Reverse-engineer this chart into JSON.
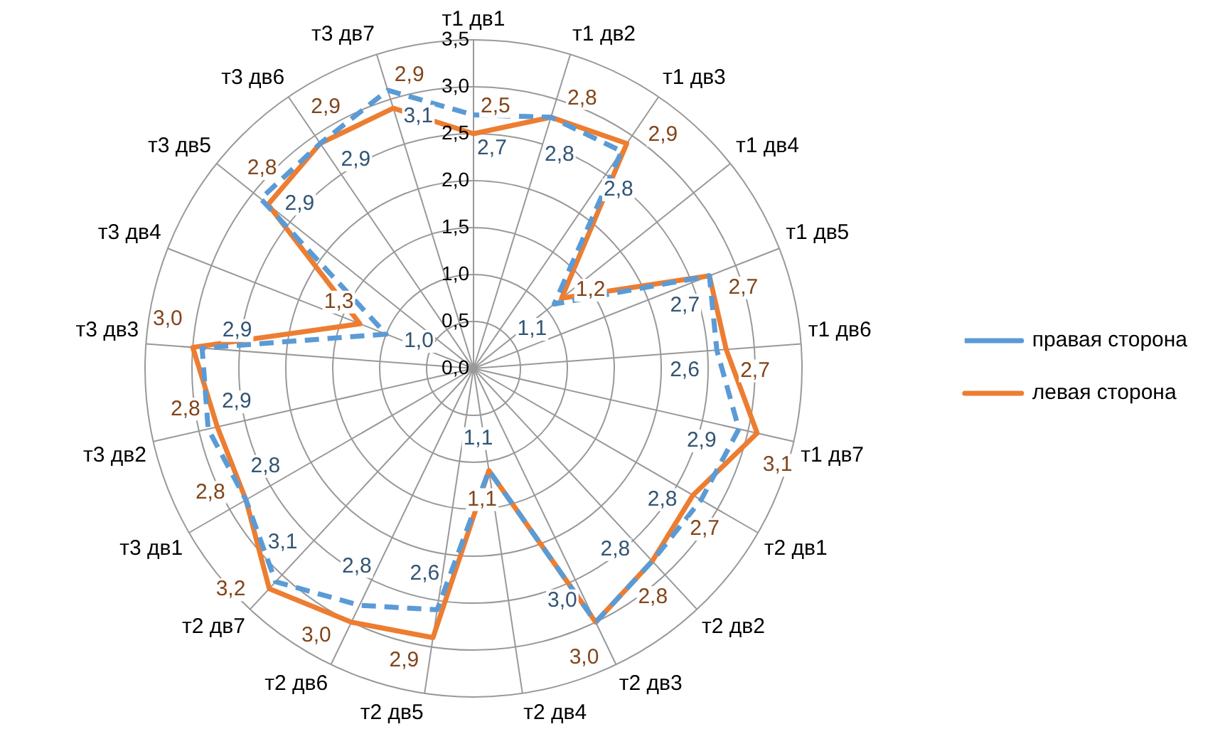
{
  "chart_data": {
    "type": "radar",
    "categories": [
      "т1 дв1",
      "т1 дв2",
      "т1 дв3",
      "т1 дв4",
      "т1 дв5",
      "т1 дв6",
      "т1 дв7",
      "т2 дв1",
      "т2 дв2",
      "т2 дв3",
      "т2 дв4",
      "т2 дв5",
      "т2 дв6",
      "т2 дв7",
      "т3 дв1",
      "т3 дв2",
      "т3 дв3",
      "т3 дв4",
      "т3 дв5",
      "т3 дв6",
      "т3 дв7"
    ],
    "series": [
      {
        "name": "правая сторона",
        "color": "#5b9bd5",
        "line_style": "dashed",
        "values": [
          2.7,
          2.8,
          2.8,
          1.1,
          2.7,
          2.6,
          2.9,
          2.8,
          2.8,
          3.0,
          1.1,
          2.6,
          2.8,
          3.1,
          2.8,
          2.9,
          2.9,
          1.0,
          2.9,
          2.9,
          3.1
        ],
        "value_labels": [
          "2,7",
          "2,8",
          "2,8",
          "1,1",
          "2,7",
          "2,6",
          "2,9",
          "2,8",
          "2,8",
          "3,0",
          "1,1",
          "2,6",
          "2,8",
          "3,1",
          "2,8",
          "2,9",
          "2,9",
          "1,0",
          "2,9",
          "2,9",
          "3,1"
        ]
      },
      {
        "name": "левая сторона",
        "color": "#ed7d31",
        "line_style": "solid",
        "values": [
          2.5,
          2.8,
          2.9,
          1.2,
          2.7,
          2.7,
          3.1,
          2.7,
          2.8,
          3.0,
          1.1,
          2.9,
          3.0,
          3.2,
          2.8,
          2.8,
          3.0,
          1.3,
          2.8,
          2.9,
          2.9
        ],
        "value_labels": [
          "2,5",
          "2,8",
          "2,9",
          "1,2",
          "2,7",
          "2,7",
          "3,1",
          "2,7",
          "2,8",
          "3,0",
          "1,1",
          "2,9",
          "3,0",
          "3,2",
          "2,8",
          "2,8",
          "3,0",
          "1,3",
          "2,8",
          "2,9",
          "2,9"
        ]
      }
    ],
    "ylim": [
      0,
      3.5
    ],
    "yticks": [
      {
        "value": 0,
        "label": "0,0"
      },
      {
        "value": 0.5,
        "label": "0,5"
      },
      {
        "value": 1,
        "label": "1,0"
      },
      {
        "value": 1.5,
        "label": "1,5"
      },
      {
        "value": 2,
        "label": "2,0"
      },
      {
        "value": 2.5,
        "label": "2,5"
      },
      {
        "value": 3,
        "label": "3,0"
      },
      {
        "value": 3.5,
        "label": "3,5"
      }
    ],
    "grid": true,
    "legend": "right",
    "marker": "none"
  }
}
